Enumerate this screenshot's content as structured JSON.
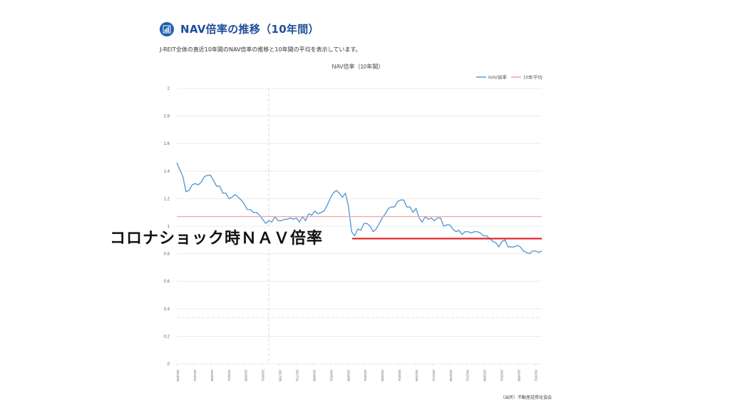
{
  "header": {
    "title": "NAV倍率の推移（10年間）",
    "description": "J-REIT全体の直近10年間のNAV倍率の推移と10年間の平均を表示しています。",
    "icon": "bar-chart-icon"
  },
  "source": "（出所）不動産証券化協会",
  "annotation": {
    "text": "コロナショック時ＮＡＶ倍率",
    "line_value": 0.91,
    "line_color": "#e0282f"
  },
  "chart_data": {
    "type": "line",
    "title": "NAV倍率（10年間）",
    "legend_position": "top-right",
    "ylim": [
      0,
      2
    ],
    "y_ticks": [
      "0",
      "0.2",
      "0.4",
      "0.6",
      "0.8",
      "1",
      "1.2",
      "1.4",
      "1.6",
      "1.8",
      "2"
    ],
    "x_ticks": [
      "2014/09",
      "2014/11",
      "2015/05",
      "2015/11",
      "2016/05",
      "2016/11",
      "2017/05",
      "2017/11",
      "2018/05",
      "2018/11",
      "2019/05",
      "2019/11",
      "2020/05",
      "2020/11",
      "2021/05",
      "2021/11",
      "2022/05",
      "2022/11",
      "2023/05",
      "2023/11",
      "2024/05",
      "2024/11"
    ],
    "grid": true,
    "series": [
      {
        "name": "NAV倍率",
        "color": "#5b9bd5",
        "values": [
          1.46,
          1.41,
          1.36,
          1.25,
          1.26,
          1.3,
          1.31,
          1.3,
          1.32,
          1.36,
          1.37,
          1.37,
          1.33,
          1.29,
          1.29,
          1.24,
          1.24,
          1.2,
          1.21,
          1.23,
          1.21,
          1.19,
          1.16,
          1.12,
          1.12,
          1.1,
          1.1,
          1.08,
          1.05,
          1.02,
          1.04,
          1.03,
          1.07,
          1.04,
          1.04,
          1.05,
          1.05,
          1.06,
          1.05,
          1.06,
          1.03,
          1.07,
          1.04,
          1.09,
          1.08,
          1.11,
          1.09,
          1.1,
          1.11,
          1.15,
          1.2,
          1.24,
          1.26,
          1.24,
          1.21,
          1.24,
          1.14,
          0.96,
          0.93,
          0.98,
          0.97,
          1.02,
          1.02,
          1.0,
          0.96,
          0.98,
          1.02,
          1.06,
          1.09,
          1.13,
          1.14,
          1.14,
          1.18,
          1.19,
          1.19,
          1.14,
          1.14,
          1.1,
          1.13,
          1.06,
          1.03,
          1.07,
          1.05,
          1.06,
          1.04,
          1.06,
          1.06,
          1.0,
          1.01,
          1.01,
          0.98,
          0.96,
          0.97,
          0.94,
          0.96,
          0.96,
          0.95,
          0.96,
          0.96,
          0.95,
          0.93,
          0.93,
          0.91,
          0.89,
          0.88,
          0.85,
          0.89,
          0.9,
          0.85,
          0.85,
          0.85,
          0.86,
          0.85,
          0.82,
          0.81,
          0.8,
          0.82,
          0.82,
          0.81,
          0.82
        ]
      },
      {
        "name": "10年平均",
        "color": "#f4a3a3",
        "values": [
          1.07
        ]
      }
    ]
  }
}
